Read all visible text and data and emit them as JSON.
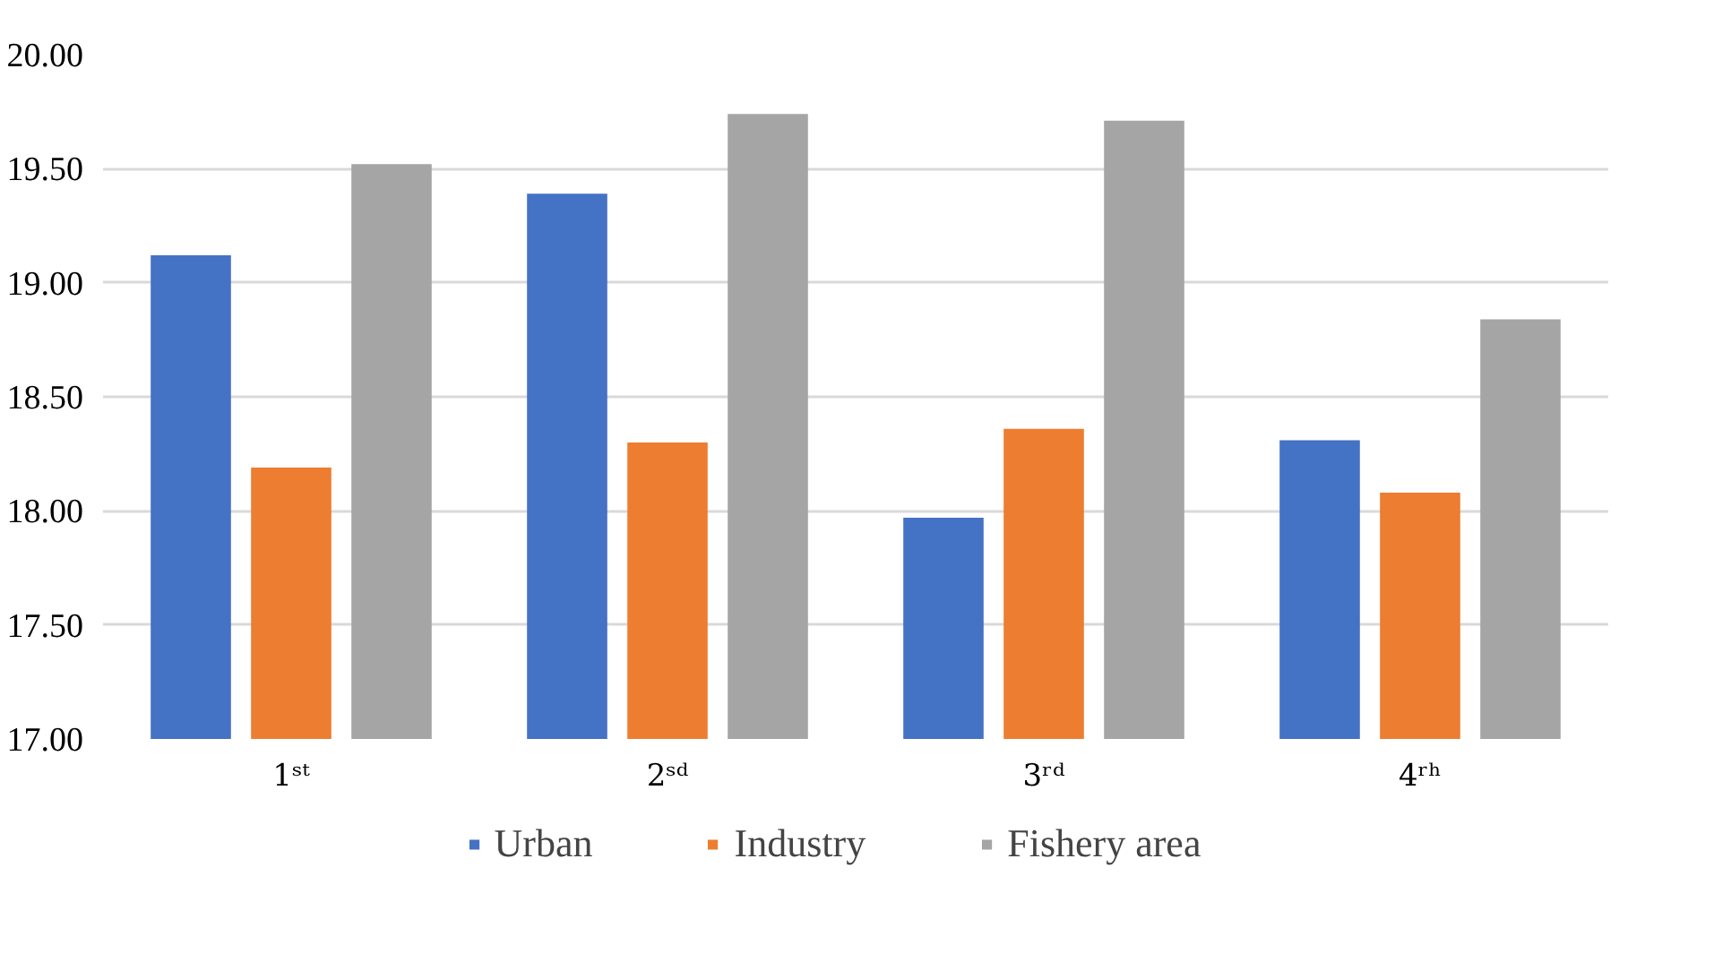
{
  "chart_data": {
    "type": "bar",
    "categories": [
      "1ˢᵗ",
      "2ˢᵈ",
      "3ʳᵈ",
      "4ʳʰ"
    ],
    "series": [
      {
        "name": "Urban",
        "color": "#4472c4",
        "values": [
          19.12,
          19.39,
          17.97,
          18.31
        ]
      },
      {
        "name": "Industry",
        "color": "#ed7d31",
        "values": [
          18.19,
          18.3,
          18.36,
          18.08
        ]
      },
      {
        "name": "Fishery area",
        "color": "#a5a5a5",
        "values": [
          19.52,
          19.74,
          19.71,
          18.84
        ]
      }
    ],
    "ylim": [
      17,
      20
    ],
    "yticks": [
      {
        "value": 17,
        "label": "17.00"
      },
      {
        "value": 17.5,
        "label": "17.50"
      },
      {
        "value": 18,
        "label": "18.00"
      },
      {
        "value": 18.5,
        "label": "18.50"
      },
      {
        "value": 19,
        "label": "19.00"
      },
      {
        "value": 19.5,
        "label": "19.50"
      },
      {
        "value": 20,
        "label": "20.00"
      }
    ],
    "grid": "y",
    "legend": "bottom"
  }
}
